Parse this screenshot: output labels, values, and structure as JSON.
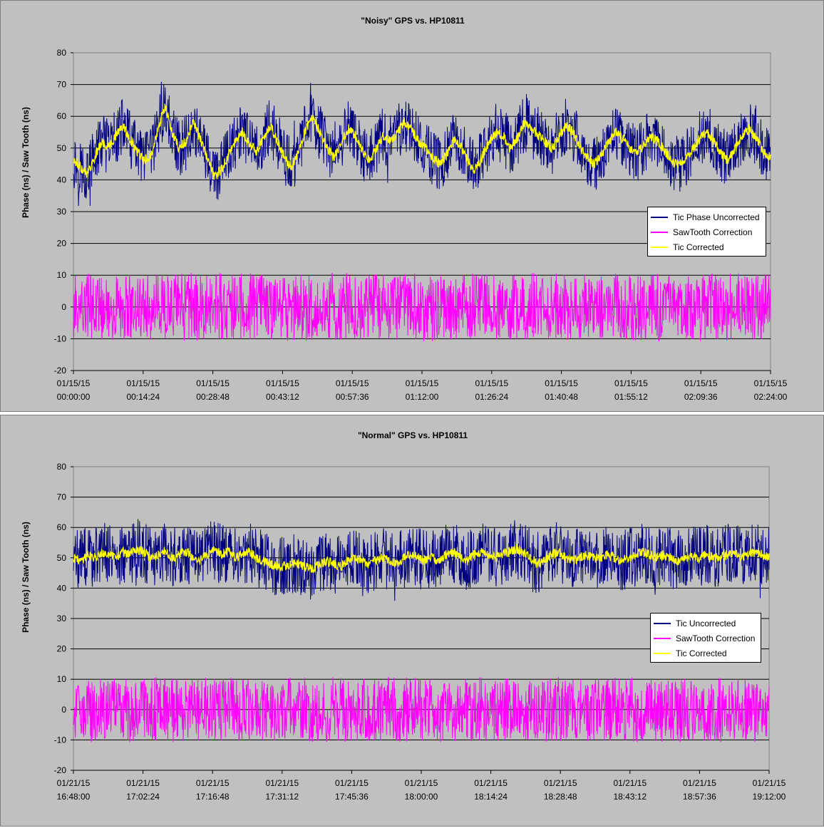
{
  "chart_data": [
    {
      "type": "line",
      "title": "\"Noisy\" GPS vs. HP10811",
      "ylabel": "Phase (ns) / Saw Tooth (ns)",
      "xlabel": "",
      "ylim": [
        -20,
        80
      ],
      "yticks": [
        "80",
        "70",
        "60",
        "50",
        "40",
        "30",
        "20",
        "10",
        "0",
        "-10",
        "-20"
      ],
      "xticks": [
        [
          "01/15/15",
          "00:00:00"
        ],
        [
          "01/15/15",
          "00:14:24"
        ],
        [
          "01/15/15",
          "00:28:48"
        ],
        [
          "01/15/15",
          "00:43:12"
        ],
        [
          "01/15/15",
          "00:57:36"
        ],
        [
          "01/15/15",
          "01:12:00"
        ],
        [
          "01/15/15",
          "01:26:24"
        ],
        [
          "01/15/15",
          "01:40:48"
        ],
        [
          "01/15/15",
          "01:55:12"
        ],
        [
          "01/15/15",
          "02:09:36"
        ],
        [
          "01/15/15",
          "02:24:00"
        ]
      ],
      "x_range": [
        "01/15/15 00:00:00",
        "01/15/15 02:24:00"
      ],
      "gridlines": "horizontal",
      "legend_position": "right",
      "series": [
        {
          "name": "Tic Phase Uncorrected",
          "color": "#000080",
          "mean_ns": 50,
          "range_ns": [
            27,
            73
          ],
          "trend": [
            46,
            44,
            42,
            47,
            52,
            50,
            54,
            57,
            53,
            49,
            46,
            48,
            56,
            63,
            55,
            50,
            52,
            58,
            53,
            47,
            41,
            43,
            48,
            52,
            55,
            51,
            49,
            53,
            57,
            52,
            47,
            44,
            49,
            56,
            60,
            55,
            50,
            47,
            52,
            56,
            54,
            49,
            46,
            50,
            54,
            52,
            55,
            58,
            56,
            52,
            50,
            47,
            45,
            48,
            53,
            51,
            46,
            43,
            47,
            52,
            55,
            54,
            50,
            53,
            58,
            56,
            54,
            52,
            50,
            54,
            57,
            55,
            50,
            47,
            45,
            48,
            52,
            55,
            53,
            50,
            48,
            51,
            54,
            52,
            49,
            46,
            45,
            47,
            50,
            53,
            55,
            52,
            48,
            46,
            50,
            54,
            56,
            53,
            49,
            47
          ]
        },
        {
          "name": "SawTooth Correction",
          "color": "#ff00ff",
          "mean_ns": 0,
          "range_ns": [
            -11,
            11
          ]
        },
        {
          "name": "Tic Corrected",
          "color": "#ffff00",
          "mean_ns": 50,
          "range_ns": [
            38,
            64
          ],
          "trend": [
            46,
            44,
            42,
            47,
            52,
            50,
            54,
            57,
            53,
            49,
            46,
            48,
            56,
            63,
            55,
            50,
            52,
            58,
            53,
            47,
            41,
            43,
            48,
            52,
            55,
            51,
            49,
            53,
            57,
            52,
            47,
            44,
            49,
            56,
            60,
            55,
            50,
            47,
            52,
            56,
            54,
            49,
            46,
            50,
            54,
            52,
            55,
            58,
            56,
            52,
            50,
            47,
            45,
            48,
            53,
            51,
            46,
            43,
            47,
            52,
            55,
            54,
            50,
            53,
            58,
            56,
            54,
            52,
            50,
            54,
            57,
            55,
            50,
            47,
            45,
            48,
            52,
            55,
            53,
            50,
            48,
            51,
            54,
            52,
            49,
            46,
            45,
            47,
            50,
            53,
            55,
            52,
            48,
            46,
            50,
            54,
            56,
            53,
            49,
            47
          ]
        }
      ]
    },
    {
      "type": "line",
      "title": "\"Normal\" GPS vs. HP10811",
      "ylabel": "Phase (ns) / Saw Tooth (ns)",
      "xlabel": "",
      "ylim": [
        -20,
        80
      ],
      "yticks": [
        "80",
        "70",
        "60",
        "50",
        "40",
        "30",
        "20",
        "10",
        "0",
        "-10",
        "-20"
      ],
      "xticks": [
        [
          "01/21/15",
          "16:48:00"
        ],
        [
          "01/21/15",
          "17:02:24"
        ],
        [
          "01/21/15",
          "17:16:48"
        ],
        [
          "01/21/15",
          "17:31:12"
        ],
        [
          "01/21/15",
          "17:45:36"
        ],
        [
          "01/21/15",
          "18:00:00"
        ],
        [
          "01/21/15",
          "18:14:24"
        ],
        [
          "01/21/15",
          "18:28:48"
        ],
        [
          "01/21/15",
          "18:43:12"
        ],
        [
          "01/21/15",
          "18:57:36"
        ],
        [
          "01/21/15",
          "19:12:00"
        ]
      ],
      "x_range": [
        "01/21/15 16:48:00",
        "01/21/15 19:12:00"
      ],
      "gridlines": "horizontal",
      "legend_position": "right",
      "series": [
        {
          "name": "Tic Uncorrected",
          "color": "#000080",
          "mean_ns": 50,
          "range_ns": [
            35,
            66
          ],
          "trend": [
            50,
            49,
            51,
            50,
            52,
            51,
            50,
            52,
            51,
            53,
            52,
            50,
            51,
            52,
            50,
            51,
            52,
            50,
            49,
            51,
            53,
            51,
            52,
            50,
            51,
            52,
            50,
            49,
            48,
            47,
            47,
            48,
            48,
            47,
            46,
            48,
            49,
            48,
            47,
            49,
            50,
            49,
            48,
            49,
            50,
            49,
            48,
            50,
            51,
            50,
            49,
            50,
            49,
            51,
            52,
            50,
            49,
            51,
            52,
            51,
            50,
            51,
            52,
            53,
            52,
            50,
            48,
            49,
            51,
            52,
            50,
            49,
            50,
            51,
            50,
            50,
            51,
            50,
            49,
            50,
            51,
            52,
            51,
            50,
            51,
            50,
            49,
            50,
            51,
            50,
            51,
            50,
            50,
            51,
            52,
            50,
            51,
            52,
            51,
            50
          ]
        },
        {
          "name": "SawTooth Correction",
          "color": "#ff00ff",
          "mean_ns": 0,
          "range_ns": [
            -11,
            11
          ]
        },
        {
          "name": "Tic Corrected",
          "color": "#ffff00",
          "mean_ns": 50,
          "range_ns": [
            45,
            56
          ],
          "trend": [
            50,
            49,
            51,
            50,
            52,
            51,
            50,
            52,
            51,
            53,
            52,
            50,
            51,
            52,
            50,
            51,
            52,
            50,
            49,
            51,
            53,
            51,
            52,
            50,
            51,
            52,
            50,
            49,
            48,
            47,
            47,
            48,
            48,
            47,
            46,
            48,
            49,
            48,
            47,
            49,
            50,
            49,
            48,
            49,
            50,
            49,
            48,
            50,
            51,
            50,
            49,
            50,
            49,
            51,
            52,
            50,
            49,
            51,
            52,
            51,
            50,
            51,
            52,
            53,
            52,
            50,
            48,
            49,
            51,
            52,
            50,
            49,
            50,
            51,
            50,
            50,
            51,
            50,
            49,
            50,
            51,
            52,
            51,
            50,
            51,
            50,
            49,
            50,
            51,
            50,
            51,
            50,
            50,
            51,
            52,
            50,
            51,
            52,
            51,
            50
          ]
        }
      ]
    }
  ]
}
